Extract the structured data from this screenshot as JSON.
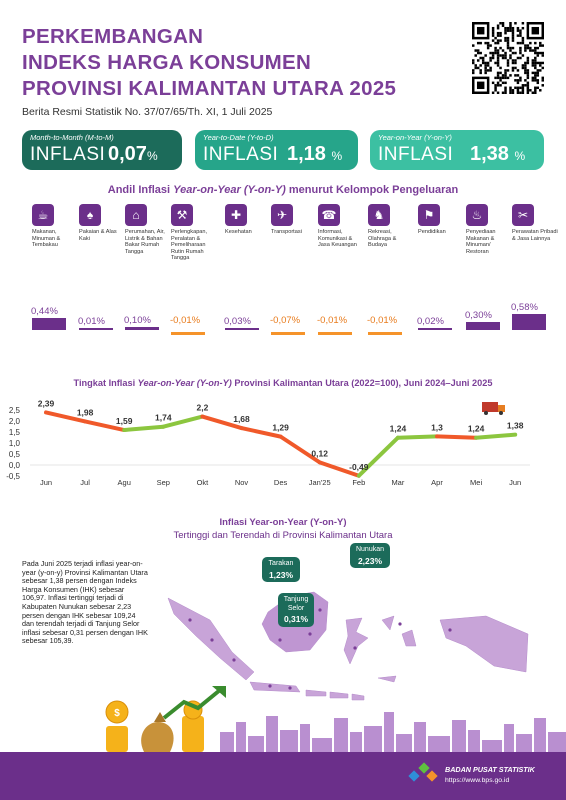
{
  "header": {
    "title_lines": [
      "PERKEMBANGAN",
      "INDEKS HARGA KONSUMEN",
      "PROVINSI KALIMANTAN UTARA 2025"
    ],
    "brs": "Berita Resmi Statistik No. 37/07/65/Th. XI, 1 Juli 2025"
  },
  "kpis": [
    {
      "caption": "Month-to-Month (M-to-M)",
      "label": "INFLASI",
      "value": "0,07",
      "unit": "%"
    },
    {
      "caption": "Year-to-Date (Y-to-D)",
      "label": "INFLASI",
      "value": "1,18",
      "unit": "%"
    },
    {
      "caption": "Year-on-Year (Y-on-Y)",
      "label": "INFLASI",
      "value": "1,38",
      "unit": "%"
    }
  ],
  "andil_title_pre": "Andil Inflasi ",
  "andil_title_em": "Year-on-Year (Y-on-Y)",
  "andil_title_post": " menurut Kelompok Pengeluaran",
  "categories": [
    {
      "label": "Makanan, Minuman & Tembakau",
      "icon": "food-icon",
      "glyph": "☕"
    },
    {
      "label": "Pakaian & Alas Kaki",
      "icon": "clothing-icon",
      "glyph": "♠"
    },
    {
      "label": "Perumahan, Air, Listrik & Bahan Bakar Rumah Tangga",
      "icon": "house-icon",
      "glyph": "⌂"
    },
    {
      "label": "Perlengkapan, Peralatan & Pemeliharaan Rutin Rumah Tangga",
      "icon": "household-icon",
      "glyph": "⚒"
    },
    {
      "label": "Kesehatan",
      "icon": "health-icon",
      "glyph": "✚"
    },
    {
      "label": "Transportasi",
      "icon": "transport-icon",
      "glyph": "✈"
    },
    {
      "label": "Informasi, Komunikasi & Jasa Keuangan",
      "icon": "phone-icon",
      "glyph": "☎"
    },
    {
      "label": "Rekreasi, Olahraga & Budaya",
      "icon": "recreation-icon",
      "glyph": "♞"
    },
    {
      "label": "Pendidikan",
      "icon": "education-icon",
      "glyph": "⚑"
    },
    {
      "label": "Penyediaan Makanan & Minuman/ Restoran",
      "icon": "restaurant-icon",
      "glyph": "♨"
    },
    {
      "label": "Perawatan Pribadi & Jasa Lainnya",
      "icon": "personal-care-icon",
      "glyph": "✂"
    }
  ],
  "chart_data": [
    {
      "type": "bar",
      "categories": [
        "Makanan, Minuman & Tembakau",
        "Pakaian & Alas Kaki",
        "Perumahan, Air, Listrik & Bahan Bakar Rumah Tangga",
        "Perlengkapan, Peralatan & Pemeliharaan Rutin Rumah Tangga",
        "Kesehatan",
        "Transportasi",
        "Informasi, Komunikasi & Jasa Keuangan",
        "Rekreasi, Olahraga & Budaya",
        "Pendidikan",
        "Penyediaan Makanan & Minuman/ Restoran",
        "Perawatan Pribadi & Jasa Lainnya"
      ],
      "values": [
        0.44,
        0.01,
        0.1,
        -0.01,
        0.03,
        -0.07,
        -0.01,
        -0.01,
        0.02,
        0.3,
        0.58
      ],
      "labels": [
        "0,44%",
        "0,01%",
        "0,10%",
        "-0,01%",
        "0,03%",
        "-0,07%",
        "-0,01%",
        "-0,01%",
        "0,02%",
        "0,30%",
        "0,58%"
      ],
      "colors": {
        "positive": "#6b2f8a",
        "negative": "#f5932a"
      }
    },
    {
      "type": "line",
      "title_pre": "Tingkat Inflasi ",
      "title_em": "Year-on-Year (Y-on-Y)",
      "title_post": " Provinsi Kalimantan Utara (2022=100), Juni 2024–Juni 2025",
      "categories": [
        "Jun",
        "Jul",
        "Agu",
        "Sep",
        "Okt",
        "Nov",
        "Des",
        "Jan'25",
        "Feb",
        "Mar",
        "Apr",
        "Mei",
        "Jun"
      ],
      "values": [
        2.39,
        1.98,
        1.59,
        1.74,
        2.2,
        1.68,
        1.29,
        0.12,
        -0.49,
        1.24,
        1.3,
        1.24,
        1.38
      ],
      "labels": [
        "2,39",
        "1,98",
        "1,59",
        "1,74",
        "2,2",
        "1,68",
        "1,29",
        "0,12",
        "-0,49",
        "1,24",
        "1,3",
        "1,24",
        "1,38"
      ],
      "yticks": [
        "2,5",
        "2,0",
        "1,5",
        "1,0",
        "0,5",
        "0,0",
        "-0,5"
      ],
      "ytick_values": [
        2.5,
        2.0,
        1.5,
        1.0,
        0.5,
        0.0,
        -0.5
      ],
      "ylim": [
        -0.5,
        2.5
      ],
      "colors": {
        "up": "#8cc63f",
        "down": "#f0592a"
      }
    }
  ],
  "map": {
    "title_em": "Inflasi Year-on-Year (Y-on-Y)",
    "subtitle": "Tertinggi dan Terendah di Provinsi Kalimantan Utara",
    "callouts": [
      {
        "name": "Tarakan",
        "value": "1,23%"
      },
      {
        "name": "Nunukan",
        "value": "2,23%"
      },
      {
        "name": "Tanjung Selor",
        "value": "0,31%"
      }
    ],
    "paragraph": "Pada Juni 2025 terjadi inflasi year-on-year (y-on-y) Provinsi Kalimantan Utara sebesar 1,38 persen dengan Indeks Harga Konsumen (IHK) sebesar 106,97. Inflasi tertinggi terjadi di Kabupaten Nunukan sebesar 2,23 persen dengan IHK sebesar 109,24 dan terendah terjadi di Tanjung Selor inflasi sebesar 0,31 persen dengan IHK sebesar 105,39."
  },
  "footer": {
    "org": "BADAN PUSAT STATISTIK",
    "url": "https://www.bps.go.id"
  }
}
